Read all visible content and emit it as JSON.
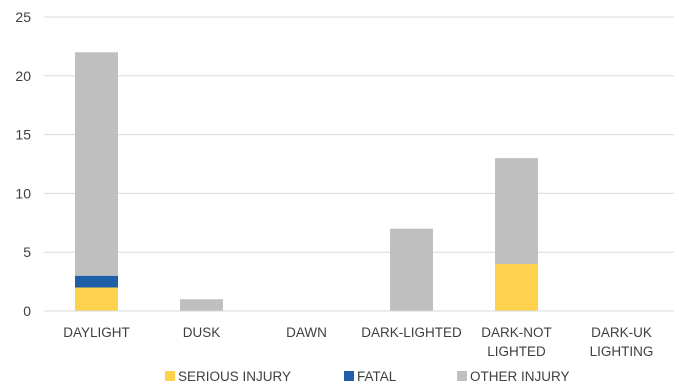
{
  "chart_data": {
    "type": "bar",
    "stacked": true,
    "title": "",
    "xlabel": "",
    "ylabel": "",
    "ylim": [
      0,
      25
    ],
    "yticks": [
      0,
      5,
      10,
      15,
      20,
      25
    ],
    "grid": true,
    "legend_position": "bottom",
    "categories": [
      [
        "DAYLIGHT"
      ],
      [
        "DUSK"
      ],
      [
        "DAWN"
      ],
      [
        "DARK-LIGHTED"
      ],
      [
        "DARK-NOT",
        "LIGHTED"
      ],
      [
        "DARK-UK",
        "LIGHTING"
      ]
    ],
    "series": [
      {
        "name": "SERIOUS INJURY",
        "color": "#FFD24D",
        "values": [
          2,
          0,
          0,
          0,
          4,
          0
        ]
      },
      {
        "name": "FATAL",
        "color": "#1F5FA8",
        "values": [
          1,
          0,
          0,
          0,
          0,
          0
        ]
      },
      {
        "name": "OTHER INJURY",
        "color": "#BFBFBF",
        "values": [
          19,
          1,
          0,
          7,
          9,
          0
        ]
      }
    ]
  }
}
